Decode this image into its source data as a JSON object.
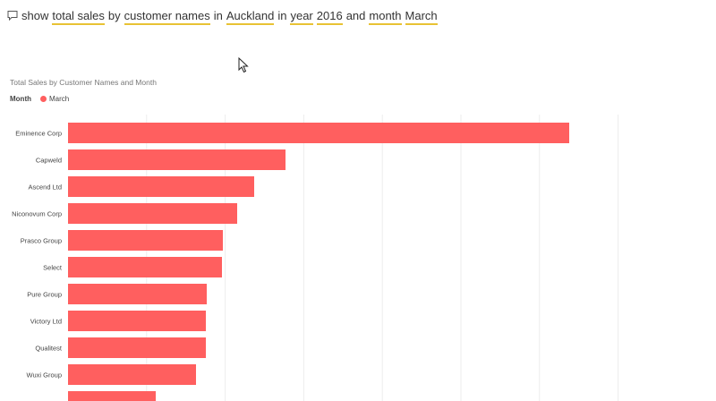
{
  "qna": {
    "icon": "chat-bubble-icon",
    "words": [
      {
        "text": "show",
        "keyword": false
      },
      {
        "text": "total sales",
        "keyword": true
      },
      {
        "text": "by",
        "keyword": false
      },
      {
        "text": "customer names",
        "keyword": true
      },
      {
        "text": "in",
        "keyword": false
      },
      {
        "text": "Auckland",
        "keyword": true
      },
      {
        "text": "in",
        "keyword": false
      },
      {
        "text": "year",
        "keyword": true
      },
      {
        "text": "2016",
        "keyword": true
      },
      {
        "text": "and",
        "keyword": false
      },
      {
        "text": "month",
        "keyword": true
      },
      {
        "text": "March",
        "keyword": true
      }
    ]
  },
  "colors": {
    "bar": "#ff5f5f",
    "keyword_underline": "#e8c234",
    "grid": "#ececec"
  },
  "chart_data": {
    "type": "bar",
    "orientation": "horizontal",
    "title": "Total Sales by Customer Names and Month",
    "legend": {
      "title": "Month",
      "entries": [
        "March"
      ],
      "placement": "top-left"
    },
    "categories": [
      "Eminence Corp",
      "Capweld",
      "Ascend Ltd",
      "Niconovum Corp",
      "Prasco Group",
      "Select",
      "Pure Group",
      "Victory Ltd",
      "Qualitest",
      "Wuxi Group",
      ""
    ],
    "series": [
      {
        "name": "March",
        "values": [
          560,
          243,
          208,
          189,
          173,
          172,
          155,
          154,
          154,
          143,
          98
        ]
      }
    ],
    "xlim": [
      0,
      700
    ],
    "grid": true
  }
}
